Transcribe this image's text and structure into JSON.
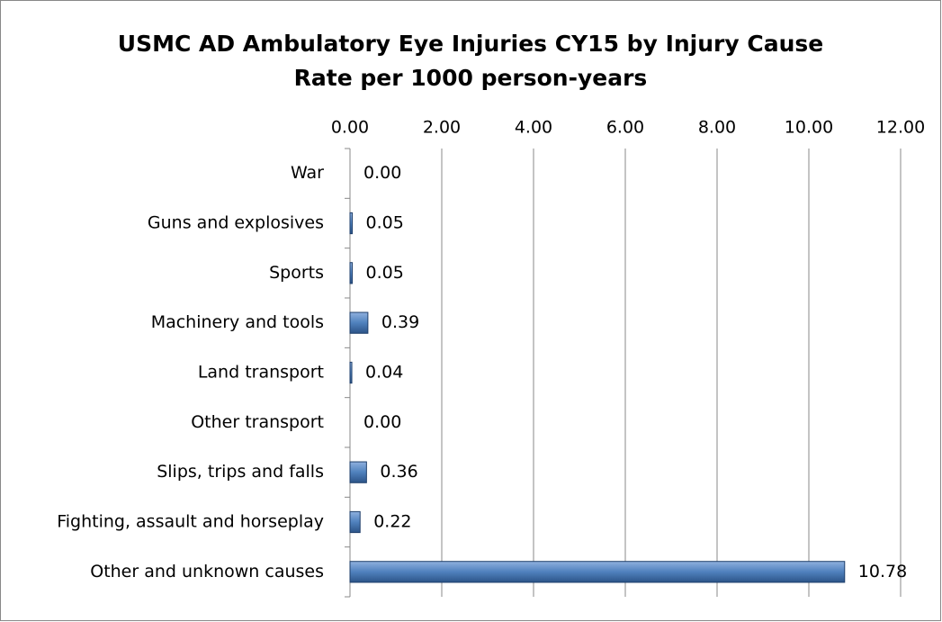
{
  "chart_data": {
    "type": "bar",
    "orientation": "horizontal",
    "title": "USMC AD Ambulatory Eye Injuries CY15 by Injury Cause",
    "subtitle": "Rate per 1000 person-years",
    "categories": [
      "War",
      "Guns and explosives",
      "Sports",
      "Machinery and tools",
      "Land transport",
      "Other transport",
      "Slips, trips and falls",
      "Fighting, assault and horseplay",
      "Other and unknown causes"
    ],
    "values": [
      0,
      0.05,
      0.05,
      0.39,
      0.04,
      0,
      0.36,
      0.22,
      10.78
    ],
    "value_labels": [
      "0.00",
      "0.05",
      "0.05",
      "0.39",
      "0.04",
      "0.00",
      "0.36",
      "0.22",
      "10.78"
    ],
    "color": "#4f81bd",
    "xlim": [
      0,
      12
    ],
    "xticks": [
      {
        "value": 0,
        "label": "0.00"
      },
      {
        "value": 2,
        "label": "2.00"
      },
      {
        "value": 4,
        "label": "4.00"
      },
      {
        "value": 6,
        "label": "6.00"
      },
      {
        "value": 8,
        "label": "8.00"
      },
      {
        "value": 10,
        "label": "10.00"
      },
      {
        "value": 12,
        "label": "12.00"
      }
    ],
    "grid": true
  }
}
